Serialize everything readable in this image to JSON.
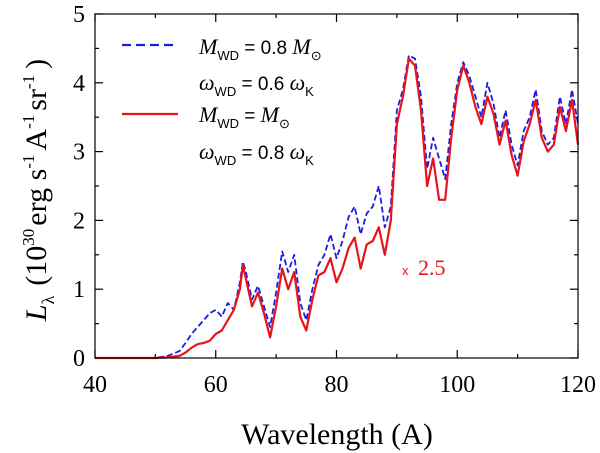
{
  "chart_data": {
    "type": "line",
    "xlabel": "Wavelength (A)",
    "ylabel_main": "L",
    "ylabel_sub": "λ",
    "ylabel_open": "(10",
    "ylabel_exp": "30",
    "ylabel_units": "erg s",
    "ylabel_units2": "A",
    "ylabel_units3": "sr",
    "ylabel_neg1": "-1",
    "ylabel_close": ")",
    "xlim": [
      40,
      120
    ],
    "ylim": [
      0,
      5
    ],
    "xticks": [
      "40",
      "60",
      "80",
      "100",
      "120"
    ],
    "yticks": [
      "0",
      "1",
      "2",
      "3",
      "4",
      "5"
    ],
    "annotation": {
      "prefix": "x",
      "text": "2.5"
    },
    "legend": [
      {
        "name": "MWD = 0.8 MSun, omega = 0.6 omegaK",
        "style": "dashed",
        "line1": {
          "var": "M",
          "sub": "WD",
          "eq": " = 0.8 ",
          "var2": "M",
          "sub2": "⊙"
        },
        "line2": {
          "var": "ω",
          "sub": "WD",
          "eq": " = 0.6 ",
          "var2": "ω",
          "sub2": "K"
        }
      },
      {
        "name": "MWD = MSun, omega = 0.8 omegaK",
        "style": "solid",
        "line1": {
          "var": "M",
          "sub": "WD",
          "eq": " = ",
          "var2": "M",
          "sub2": "⊙"
        },
        "line2": {
          "var": "ω",
          "sub": "WD",
          "eq": " = 0.8 ",
          "var2": "ω",
          "sub2": "K"
        }
      }
    ],
    "colors": {
      "series1": "#1c1ce6",
      "series2": "#e8141b"
    },
    "series": [
      {
        "name": "MWD = 0.8 MSun, omega = 0.6 omegaK",
        "x": [
          40,
          50,
          52,
          54,
          55,
          56,
          57,
          58,
          59,
          60,
          61,
          62,
          63,
          64,
          64.5,
          65,
          66,
          67,
          68,
          69,
          70,
          71,
          72,
          73,
          74,
          75,
          76,
          77,
          78,
          79,
          80,
          81,
          82,
          83,
          84,
          85,
          86,
          87,
          88,
          89,
          90,
          91,
          92,
          93,
          94,
          95,
          96,
          97,
          98,
          99,
          100,
          101,
          102,
          103,
          104,
          105,
          106,
          107,
          108,
          109,
          110,
          111,
          112,
          113,
          114,
          115,
          116,
          117,
          118,
          119,
          120
        ],
        "values": [
          0,
          0,
          0.03,
          0.1,
          0.22,
          0.35,
          0.45,
          0.55,
          0.65,
          0.7,
          0.6,
          0.8,
          0.7,
          1.1,
          1.4,
          1.25,
          0.85,
          1.05,
          0.75,
          0.45,
          0.95,
          1.55,
          1.25,
          1.5,
          0.8,
          0.55,
          1.0,
          1.35,
          1.5,
          1.8,
          1.45,
          1.7,
          2.05,
          2.2,
          1.8,
          2.1,
          2.2,
          2.5,
          1.9,
          2.2,
          3.6,
          3.9,
          4.4,
          4.35,
          3.8,
          2.75,
          3.2,
          2.9,
          2.6,
          3.4,
          4.0,
          4.3,
          4.1,
          3.8,
          3.5,
          4.0,
          3.7,
          3.2,
          3.6,
          3.1,
          2.8,
          3.3,
          3.5,
          3.9,
          3.3,
          3.1,
          3.2,
          3.8,
          3.4,
          3.9,
          3.4
        ]
      },
      {
        "name": "MWD = MSun, omega = 0.8 omegaK",
        "x": [
          40,
          50,
          52,
          54,
          55,
          56,
          57,
          58,
          59,
          60,
          61,
          62,
          63,
          64,
          64.5,
          65,
          66,
          67,
          68,
          69,
          70,
          71,
          72,
          73,
          74,
          75,
          76,
          77,
          78,
          79,
          80,
          81,
          82,
          83,
          84,
          85,
          86,
          87,
          88,
          89,
          90,
          91,
          92,
          93,
          94,
          95,
          96,
          97,
          98,
          99,
          100,
          101,
          102,
          103,
          104,
          105,
          106,
          107,
          108,
          109,
          110,
          111,
          112,
          113,
          114,
          115,
          116,
          117,
          118,
          119,
          120
        ],
        "values": [
          0,
          0,
          0.01,
          0.03,
          0.08,
          0.15,
          0.2,
          0.22,
          0.25,
          0.35,
          0.4,
          0.55,
          0.7,
          1.0,
          1.35,
          1.15,
          0.75,
          0.95,
          0.65,
          0.3,
          0.75,
          1.3,
          1.0,
          1.25,
          0.6,
          0.4,
          0.85,
          1.2,
          1.25,
          1.45,
          1.1,
          1.3,
          1.6,
          1.75,
          1.3,
          1.65,
          1.7,
          1.9,
          1.5,
          2.0,
          3.4,
          3.8,
          4.35,
          4.25,
          3.6,
          2.5,
          2.9,
          2.3,
          2.3,
          3.2,
          3.9,
          4.25,
          4.0,
          3.65,
          3.4,
          3.8,
          3.55,
          3.1,
          3.45,
          2.95,
          2.65,
          3.15,
          3.4,
          3.75,
          3.2,
          3.0,
          3.1,
          3.65,
          3.3,
          3.75,
          3.1
        ]
      }
    ]
  }
}
